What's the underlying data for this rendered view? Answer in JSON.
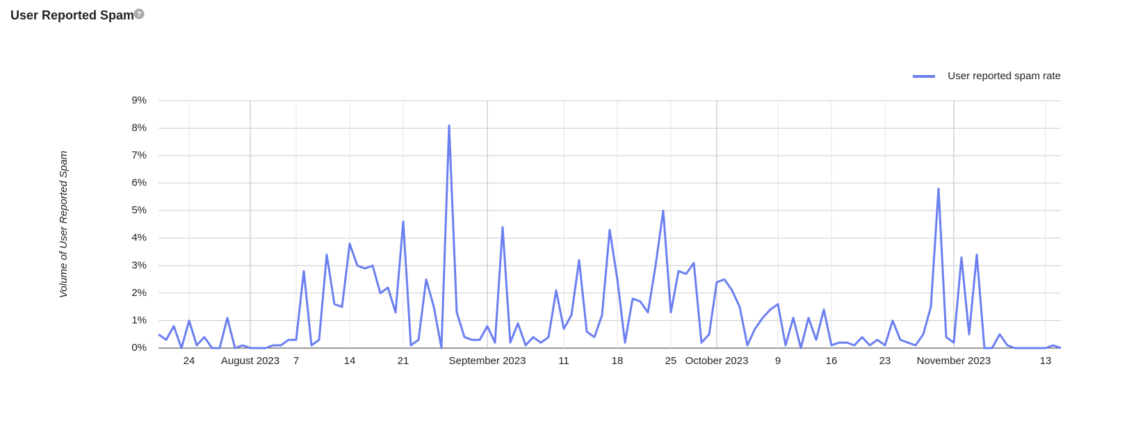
{
  "header": {
    "title": "User Reported Spam"
  },
  "chart_data": {
    "type": "line",
    "y_label": "Volume of User Reported Spam",
    "legend": "top-right",
    "grid": true,
    "x": [
      "2023-07-20",
      "2023-07-21",
      "2023-07-22",
      "2023-07-23",
      "2023-07-24",
      "2023-07-25",
      "2023-07-26",
      "2023-07-27",
      "2023-07-28",
      "2023-07-29",
      "2023-07-30",
      "2023-07-31",
      "2023-08-01",
      "2023-08-02",
      "2023-08-03",
      "2023-08-04",
      "2023-08-05",
      "2023-08-06",
      "2023-08-07",
      "2023-08-08",
      "2023-08-09",
      "2023-08-10",
      "2023-08-11",
      "2023-08-12",
      "2023-08-13",
      "2023-08-14",
      "2023-08-15",
      "2023-08-16",
      "2023-08-17",
      "2023-08-18",
      "2023-08-19",
      "2023-08-20",
      "2023-08-21",
      "2023-08-22",
      "2023-08-23",
      "2023-08-24",
      "2023-08-25",
      "2023-08-26",
      "2023-08-27",
      "2023-08-28",
      "2023-08-29",
      "2023-08-30",
      "2023-08-31",
      "2023-09-01",
      "2023-09-02",
      "2023-09-03",
      "2023-09-04",
      "2023-09-05",
      "2023-09-06",
      "2023-09-07",
      "2023-09-08",
      "2023-09-09",
      "2023-09-10",
      "2023-09-11",
      "2023-09-12",
      "2023-09-13",
      "2023-09-14",
      "2023-09-15",
      "2023-09-16",
      "2023-09-17",
      "2023-09-18",
      "2023-09-19",
      "2023-09-20",
      "2023-09-21",
      "2023-09-22",
      "2023-09-23",
      "2023-09-24",
      "2023-09-25",
      "2023-09-26",
      "2023-09-27",
      "2023-09-28",
      "2023-09-29",
      "2023-09-30",
      "2023-10-01",
      "2023-10-02",
      "2023-10-03",
      "2023-10-04",
      "2023-10-05",
      "2023-10-06",
      "2023-10-07",
      "2023-10-08",
      "2023-10-09",
      "2023-10-10",
      "2023-10-11",
      "2023-10-12",
      "2023-10-13",
      "2023-10-14",
      "2023-10-15",
      "2023-10-16",
      "2023-10-17",
      "2023-10-18",
      "2023-10-19",
      "2023-10-20",
      "2023-10-21",
      "2023-10-22",
      "2023-10-23",
      "2023-10-24",
      "2023-10-25",
      "2023-10-26",
      "2023-10-27",
      "2023-10-28",
      "2023-10-29",
      "2023-10-30",
      "2023-10-31",
      "2023-11-01",
      "2023-11-02",
      "2023-11-03",
      "2023-11-04",
      "2023-11-05",
      "2023-11-06",
      "2023-11-07",
      "2023-11-08",
      "2023-11-09",
      "2023-11-10",
      "2023-11-11",
      "2023-11-12",
      "2023-11-13",
      "2023-11-14",
      "2023-11-15"
    ],
    "series": [
      {
        "name": "User reported spam rate",
        "color": "#6b7ff0",
        "values": [
          0.5,
          0.3,
          0.8,
          0,
          1.0,
          0.1,
          0.4,
          0,
          0,
          1.1,
          0,
          0.1,
          0,
          0,
          0,
          0.1,
          0.1,
          0.3,
          0.3,
          2.8,
          0.1,
          0.3,
          3.4,
          1.6,
          1.5,
          3.8,
          3.0,
          2.9,
          3.0,
          2.0,
          2.2,
          1.3,
          4.6,
          0.1,
          0.3,
          2.5,
          1.5,
          0,
          8.1,
          1.3,
          0.4,
          0.3,
          0.3,
          0.8,
          0.2,
          4.4,
          0.2,
          0.9,
          0.1,
          0.4,
          0.2,
          0.4,
          2.1,
          0.7,
          1.2,
          3.2,
          0.6,
          0.4,
          1.2,
          4.3,
          2.5,
          0.2,
          1.8,
          1.7,
          1.3,
          3.0,
          5.0,
          1.3,
          2.8,
          2.7,
          3.1,
          0.2,
          0.5,
          2.4,
          2.5,
          2.1,
          1.5,
          0.1,
          0.7,
          1.1,
          1.4,
          1.6,
          0.1,
          1.1,
          0,
          1.1,
          0.3,
          1.4,
          0.1,
          0.2,
          0.2,
          0.1,
          0.4,
          0.1,
          0.3,
          0.1,
          1.0,
          0.3,
          0.2,
          0.1,
          0.5,
          1.5,
          5.8,
          0.4,
          0.2,
          3.3,
          0.5,
          3.4,
          0,
          0,
          0.5,
          0.1,
          0,
          0,
          0,
          0,
          0,
          0.1,
          0
        ]
      }
    ],
    "xlim": [
      "2023-07-20",
      "2023-11-15"
    ],
    "xticks": [
      {
        "value": "2023-07-24",
        "label": "24"
      },
      {
        "value": "2023-08-01",
        "label": "August 2023"
      },
      {
        "value": "2023-08-07",
        "label": "7"
      },
      {
        "value": "2023-08-14",
        "label": "14"
      },
      {
        "value": "2023-08-21",
        "label": "21"
      },
      {
        "value": "2023-09-01",
        "label": "September 2023"
      },
      {
        "value": "2023-09-11",
        "label": "11"
      },
      {
        "value": "2023-09-18",
        "label": "18"
      },
      {
        "value": "2023-09-25",
        "label": "25"
      },
      {
        "value": "2023-10-01",
        "label": "October 2023"
      },
      {
        "value": "2023-10-09",
        "label": "9"
      },
      {
        "value": "2023-10-16",
        "label": "16"
      },
      {
        "value": "2023-10-23",
        "label": "23"
      },
      {
        "value": "2023-11-01",
        "label": "November 2023"
      },
      {
        "value": "2023-11-13",
        "label": "13"
      }
    ],
    "ylim": [
      0,
      9
    ],
    "yticks": [
      {
        "value": 0,
        "label": "0%"
      },
      {
        "value": 1,
        "label": "1%"
      },
      {
        "value": 2,
        "label": "2%"
      },
      {
        "value": 3,
        "label": "3%"
      },
      {
        "value": 4,
        "label": "4%"
      },
      {
        "value": 5,
        "label": "5%"
      },
      {
        "value": 6,
        "label": "6%"
      },
      {
        "value": 7,
        "label": "7%"
      },
      {
        "value": 8,
        "label": "8%"
      },
      {
        "value": 9,
        "label": "9%"
      }
    ]
  }
}
